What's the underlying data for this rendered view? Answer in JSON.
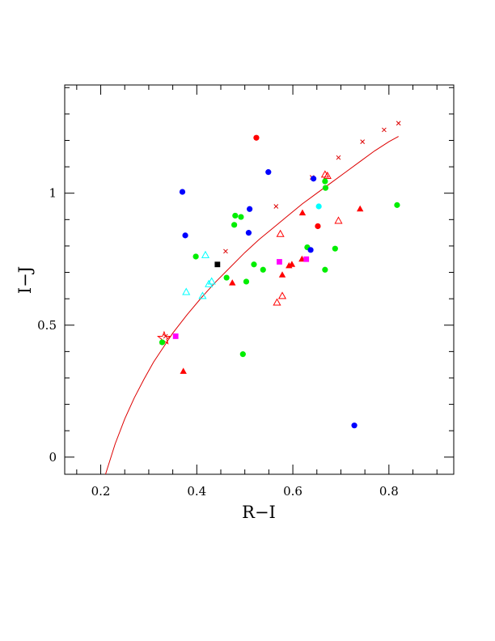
{
  "chart_data": {
    "type": "scatter",
    "title": "",
    "xlabel": "R−I",
    "ylabel": "I−J",
    "xlim": [
      0.125,
      0.935
    ],
    "ylim": [
      -0.065,
      1.41
    ],
    "xticks": [
      {
        "value": 0.2,
        "label": "0.2"
      },
      {
        "value": 0.4,
        "label": "0.4"
      },
      {
        "value": 0.6,
        "label": "0.6"
      },
      {
        "value": 0.8,
        "label": "0.8"
      }
    ],
    "yticks": [
      {
        "value": 0,
        "label": "0"
      },
      {
        "value": 0.5,
        "label": "0.5"
      },
      {
        "value": 1,
        "label": "1"
      }
    ],
    "x_minor_step": 0.05,
    "y_minor_step": 0.1,
    "grid": false,
    "legend": "none",
    "colors": {
      "red": "#ff0000",
      "green": "#00ee00",
      "blue": "#0000ff",
      "cyan": "#00ffff",
      "magenta": "#ff00ff",
      "black": "#000000"
    },
    "curve": {
      "color": "#dd0000",
      "marker": "x",
      "points": [
        [
          0.21,
          -0.065
        ],
        [
          0.23,
          0.05
        ],
        [
          0.25,
          0.145
        ],
        [
          0.27,
          0.225
        ],
        [
          0.29,
          0.295
        ],
        [
          0.31,
          0.36
        ],
        [
          0.33,
          0.415
        ],
        [
          0.35,
          0.47
        ],
        [
          0.38,
          0.54
        ],
        [
          0.41,
          0.605
        ],
        [
          0.44,
          0.665
        ],
        [
          0.47,
          0.72
        ],
        [
          0.5,
          0.775
        ],
        [
          0.53,
          0.825
        ],
        [
          0.56,
          0.87
        ],
        [
          0.59,
          0.915
        ],
        [
          0.62,
          0.96
        ],
        [
          0.65,
          1.0
        ],
        [
          0.68,
          1.04
        ],
        [
          0.71,
          1.08
        ],
        [
          0.74,
          1.12
        ],
        [
          0.77,
          1.16
        ],
        [
          0.8,
          1.195
        ],
        [
          0.82,
          1.215
        ]
      ],
      "marked_points": [
        [
          0.335,
          0.458
        ],
        [
          0.46,
          0.78
        ],
        [
          0.565,
          0.95
        ],
        [
          0.64,
          1.06
        ],
        [
          0.695,
          1.135
        ],
        [
          0.745,
          1.195
        ],
        [
          0.79,
          1.24
        ],
        [
          0.82,
          1.265
        ]
      ]
    },
    "series": [
      {
        "color": "red",
        "marker": "circle",
        "points": [
          [
            0.524,
            1.21
          ],
          [
            0.652,
            0.875
          ]
        ]
      },
      {
        "color": "red",
        "marker": "triangle-filled",
        "points": [
          [
            0.372,
            0.325
          ],
          [
            0.474,
            0.66
          ],
          [
            0.578,
            0.69
          ],
          [
            0.592,
            0.725
          ],
          [
            0.598,
            0.73
          ],
          [
            0.619,
            0.75
          ],
          [
            0.62,
            0.925
          ],
          [
            0.74,
            0.94
          ]
        ]
      },
      {
        "color": "red",
        "marker": "triangle-open",
        "points": [
          [
            0.567,
            0.585
          ],
          [
            0.578,
            0.61
          ],
          [
            0.574,
            0.845
          ],
          [
            0.667,
            1.07
          ],
          [
            0.672,
            1.065
          ],
          [
            0.695,
            0.895
          ]
        ]
      },
      {
        "color": "red",
        "marker": "star-open",
        "points": [
          [
            0.332,
            0.45
          ]
        ]
      },
      {
        "color": "green",
        "marker": "circle",
        "points": [
          [
            0.328,
            0.435
          ],
          [
            0.398,
            0.76
          ],
          [
            0.462,
            0.68
          ],
          [
            0.478,
            0.88
          ],
          [
            0.48,
            0.915
          ],
          [
            0.492,
            0.91
          ],
          [
            0.496,
            0.39
          ],
          [
            0.503,
            0.665
          ],
          [
            0.519,
            0.73
          ],
          [
            0.538,
            0.71
          ],
          [
            0.63,
            0.795
          ],
          [
            0.667,
            1.045
          ],
          [
            0.668,
            1.02
          ],
          [
            0.667,
            0.71
          ],
          [
            0.688,
            0.79
          ],
          [
            0.817,
            0.955
          ]
        ]
      },
      {
        "color": "blue",
        "marker": "circle",
        "points": [
          [
            0.37,
            1.005
          ],
          [
            0.376,
            0.84
          ],
          [
            0.508,
            0.85
          ],
          [
            0.51,
            0.94
          ],
          [
            0.549,
            1.08
          ],
          [
            0.637,
            0.785
          ],
          [
            0.643,
            1.055
          ],
          [
            0.728,
            0.12
          ]
        ]
      },
      {
        "color": "cyan",
        "marker": "circle",
        "points": [
          [
            0.654,
            0.95
          ]
        ]
      },
      {
        "color": "cyan",
        "marker": "triangle-open",
        "points": [
          [
            0.378,
            0.625
          ],
          [
            0.412,
            0.61
          ],
          [
            0.418,
            0.765
          ],
          [
            0.425,
            0.655
          ],
          [
            0.431,
            0.665
          ]
        ]
      },
      {
        "color": "magenta",
        "marker": "square",
        "points": [
          [
            0.356,
            0.458
          ],
          [
            0.572,
            0.74
          ],
          [
            0.628,
            0.75
          ]
        ]
      },
      {
        "color": "black",
        "marker": "square",
        "points": [
          [
            0.443,
            0.73
          ]
        ]
      }
    ]
  }
}
